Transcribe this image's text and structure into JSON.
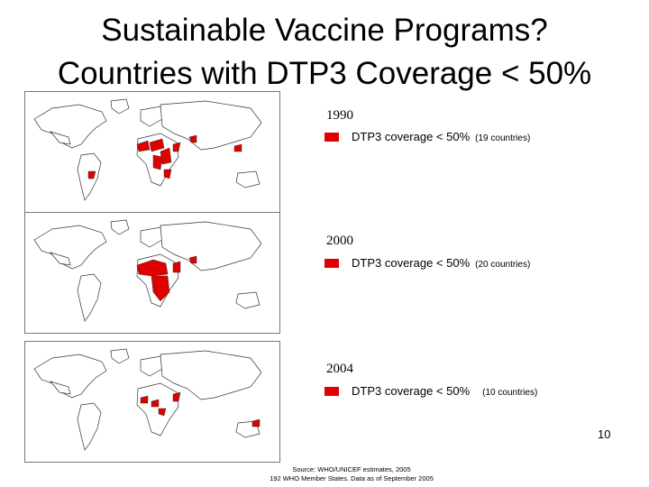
{
  "title_line1": "Sustainable Vaccine Programs?",
  "title_line2": "Countries with DTP3 Coverage < 50%",
  "panels": [
    {
      "year": "1990",
      "legend_label": "DTP3 coverage < 50%",
      "count_label": "(19 countries)"
    },
    {
      "year": "2000",
      "legend_label": "DTP3 coverage < 50%",
      "count_label": "(20 countries)"
    },
    {
      "year": "2004",
      "legend_label": "DTP3 coverage < 50%",
      "count_label": "(10 countries)"
    }
  ],
  "source_line1": "Source: WHO/UNICEF estimates, 2005",
  "source_line2": "192 WHO Member States. Data as of September 2005",
  "page_number": "10",
  "colors": {
    "highlight": "#e00000",
    "outline": "#333333",
    "border": "#777777"
  }
}
